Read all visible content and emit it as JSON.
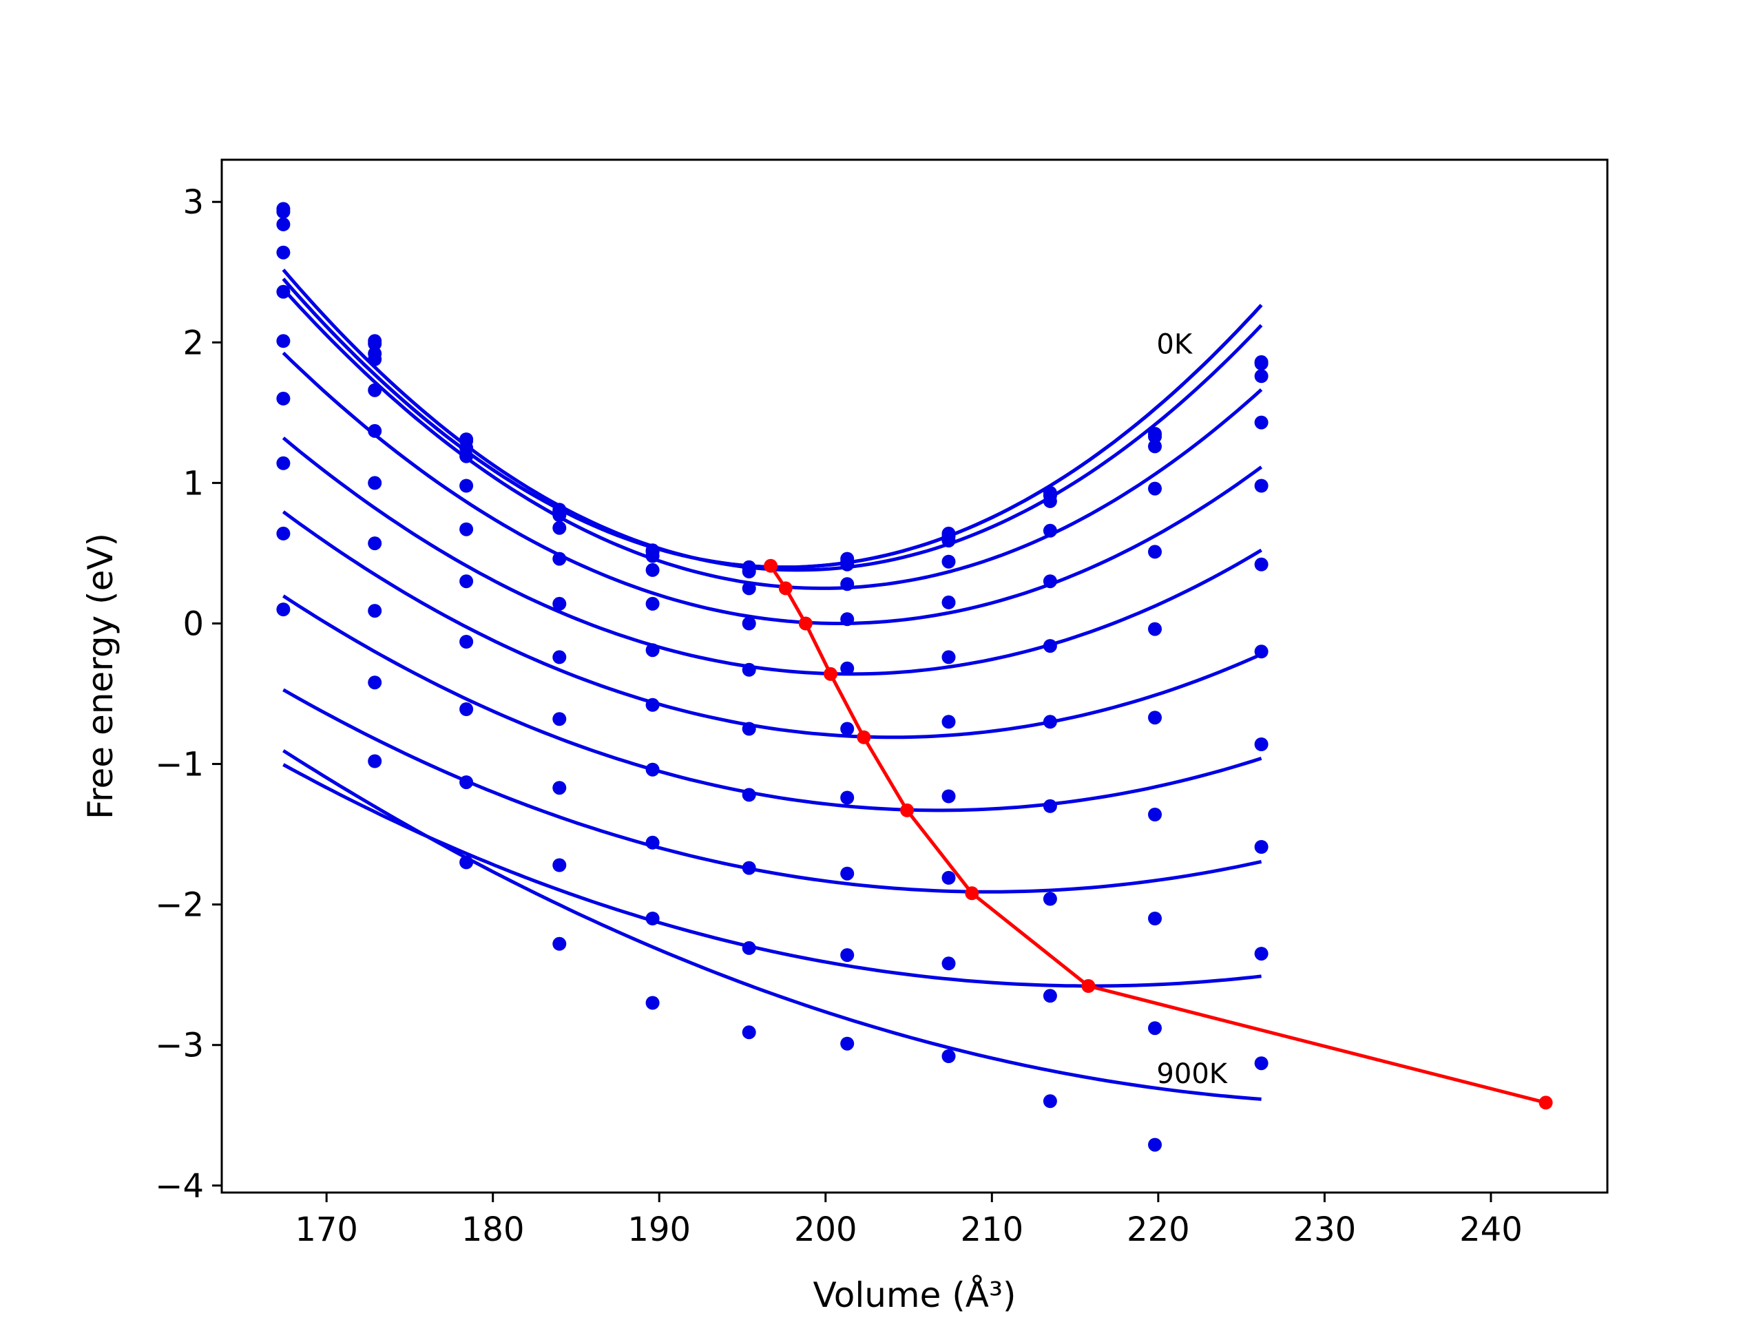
{
  "chart_data": {
    "type": "line",
    "xlabel": "Volume (Å³)",
    "ylabel": "Free energy (eV)",
    "xlim": [
      163.7,
      247.0
    ],
    "ylim": [
      -4.05,
      3.3
    ],
    "xticks": [
      170,
      180,
      190,
      200,
      210,
      220,
      230,
      240
    ],
    "yticks": [
      -4,
      -3,
      -2,
      -1,
      0,
      1,
      2,
      3
    ],
    "xtick_labels": [
      "170",
      "180",
      "190",
      "200",
      "210",
      "220",
      "230",
      "240"
    ],
    "ytick_labels": [
      "−4",
      "−3",
      "−2",
      "−1",
      "0",
      "1",
      "2",
      "3"
    ],
    "grid": false,
    "legend": "none",
    "colors": {
      "isotherms": "#0000e6",
      "minima": "#ff0000"
    },
    "annotations": [
      {
        "text": "0K",
        "x": 219.9,
        "y": 1.92
      },
      {
        "text": "900K",
        "x": 219.9,
        "y": -3.27
      }
    ],
    "points_x": [
      167.4,
      172.9,
      178.4,
      184.0,
      189.6,
      195.4,
      201.3,
      207.4,
      213.5,
      219.8,
      226.2
    ],
    "series": [
      {
        "fit": {
          "a": 0.002265,
          "v0": 197.5,
          "e0": 0.4
        },
        "points_y": [
          2.95,
          2.01,
          1.31,
          0.81,
          0.52,
          0.4,
          0.46,
          0.64,
          0.93,
          1.35,
          1.86
        ]
      },
      {
        "fit": {
          "a": 0.002265,
          "v0": 197.5,
          "e0": 0.4
        },
        "points_y": [
          2.93,
          1.99,
          1.3,
          0.8,
          0.51,
          0.39,
          0.44,
          0.62,
          0.91,
          1.33,
          1.85
        ]
      },
      {
        "fit": {
          "a": 0.002238,
          "v0": 198.3,
          "e0": 0.38
        },
        "points_y": [
          2.84,
          1.92,
          1.25,
          0.77,
          0.48,
          0.37,
          0.42,
          0.59,
          0.87,
          1.26,
          1.76
        ]
      },
      {
        "fit": {
          "a": 0.002029,
          "v0": 199.8,
          "e0": 0.25
        },
        "points_y": [
          2.64,
          1.88,
          1.19,
          0.68,
          0.38,
          0.25,
          0.28,
          0.44,
          0.66,
          0.96,
          1.43
        ]
      },
      {
        "fit": {
          "a": 0.001726,
          "v0": 200.8,
          "e0": 0.0
        },
        "points_y": [
          2.36,
          1.66,
          0.98,
          0.46,
          0.14,
          0.0,
          0.03,
          0.15,
          0.3,
          0.51,
          0.98
        ]
      },
      {
        "fit": {
          "a": 0.001445,
          "v0": 201.5,
          "e0": -0.36
        },
        "points_y": [
          2.01,
          1.37,
          0.67,
          0.14,
          -0.19,
          -0.33,
          -0.32,
          -0.24,
          -0.16,
          -0.04,
          0.42
        ]
      },
      {
        "fit": {
          "a": 0.001198,
          "v0": 204.0,
          "e0": -0.81
        },
        "points_y": [
          1.6,
          1.0,
          0.3,
          -0.24,
          -0.58,
          -0.75,
          -0.75,
          -0.7,
          -0.7,
          -0.67,
          -0.2
        ]
      },
      {
        "fit": {
          "a": 0.000983,
          "v0": 206.8,
          "e0": -1.33
        },
        "points_y": [
          1.14,
          0.57,
          -0.13,
          -0.68,
          -1.04,
          -1.22,
          -1.24,
          -1.23,
          -1.3,
          -1.36,
          -0.86
        ]
      },
      {
        "fit": {
          "a": 0.0008,
          "v0": 209.8,
          "e0": -1.91
        },
        "points_y": [
          0.64,
          0.09,
          -0.61,
          -1.17,
          -1.56,
          -1.74,
          -1.78,
          -1.81,
          -1.96,
          -2.1,
          -1.59
        ]
      },
      {
        "fit": {
          "a": 0.000667,
          "v0": 216.0,
          "e0": -2.58
        },
        "points_y": [
          0.1,
          -0.42,
          -1.13,
          -1.72,
          -2.1,
          -2.31,
          -2.36,
          -2.42,
          -2.65,
          -2.88,
          -2.35
        ]
      },
      {
        "fit": {
          "a": 0.000567,
          "v0": 234.0,
          "e0": -3.42
        },
        "points_y": [
          null,
          -0.98,
          -1.7,
          -2.28,
          -2.7,
          -2.91,
          -2.99,
          -3.08,
          -3.4,
          -3.71,
          -3.13
        ]
      }
    ],
    "minima": {
      "x": [
        196.7,
        197.6,
        198.8,
        200.3,
        202.3,
        204.9,
        208.8,
        215.8,
        243.3
      ],
      "y": [
        0.41,
        0.25,
        0.0,
        -0.36,
        -0.81,
        -1.33,
        -1.92,
        -2.58,
        -3.41
      ]
    }
  }
}
